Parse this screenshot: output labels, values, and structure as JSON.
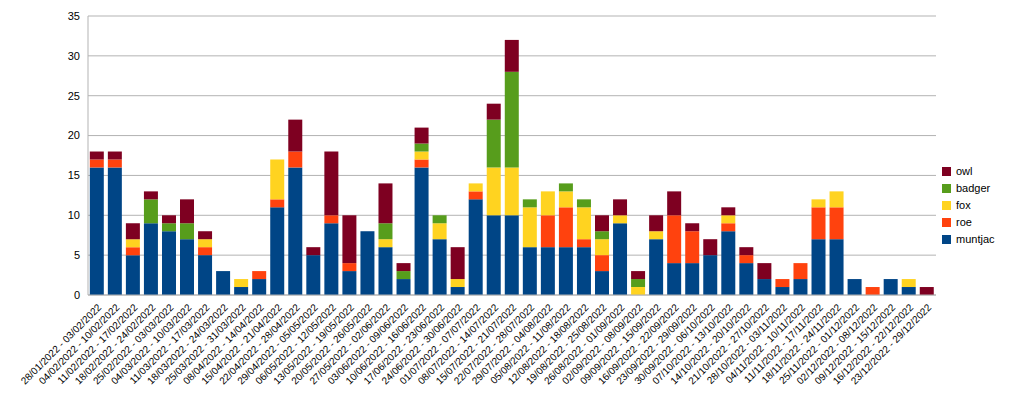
{
  "chart_data": {
    "type": "bar",
    "stacked": true,
    "grid": true,
    "legend": "right",
    "categories": [
      "28/01/2022 - 03/02/2022",
      "04/02/2022 - 10/02/2022",
      "11/02/2022 - 17/02/2022",
      "18/02/2022 - 24/02/2022",
      "25/02/2022 - 03/03/2022",
      "04/03/2022 - 10/03/2022",
      "11/03/2022 - 17/03/2022",
      "18/03/2022 - 24/03/2022",
      "25/03/2022 - 31/03/2022",
      "08/04/2022 - 14/04/2022",
      "15/04/2022 - 21/04/2022",
      "22/04/2022 - 28/04/2022",
      "29/04/2022 - 05/05/2022",
      "06/05/2022 - 12/05/2022",
      "13/05/2022 - 19/05/2022",
      "20/05/2022 - 26/05/2022",
      "27/05/2022 - 02/06/2022",
      "03/06/2022 - 09/06/2022",
      "10/06/2022 - 16/06/2022",
      "17/06/2022 - 23/06/2022",
      "24/06/2022 - 30/06/2022",
      "01/07/2022 - 07/07/2022",
      "08/07/2022 - 14/07/2022",
      "15/07/2022 - 21/07/2022",
      "22/07/2022 - 28/07/2022",
      "29/07/2022 - 04/08/2022",
      "05/08/2022 - 11/08/2022",
      "12/08/2022 - 18/08/2022",
      "19/08/2022 - 25/08/2022",
      "26/08/2022 - 01/09/2022",
      "02/09/2022 - 08/09/2022",
      "09/09/2022 - 15/09/2022",
      "16/09/2022 - 22/09/2022",
      "23/09/2022 - 29/09/2022",
      "30/09/2022 - 06/10/2022",
      "07/10/2022 - 13/10/2022",
      "14/10/2022 - 20/10/2022",
      "21/10/2022 - 27/10/2022",
      "28/10/2022 - 03/11/2022",
      "04/11/2022 - 10/11/2022",
      "11/11/2022 - 17/11/2022",
      "18/11/2022 - 24/11/2022",
      "25/11/2022 - 01/12/2022",
      "02/12/2022 - 08/12/2022",
      "09/12/2022 - 15/12/2022",
      "16/12/2022 - 22/12/2022",
      "23/12/2022 - 29/12/2022"
    ],
    "series": [
      {
        "name": "muntjac",
        "color": "#004586",
        "values": [
          16,
          16,
          5,
          9,
          8,
          7,
          5,
          3,
          1,
          2,
          11,
          16,
          5,
          9,
          3,
          8,
          6,
          2,
          16,
          7,
          1,
          12,
          10,
          10,
          6,
          6,
          6,
          6,
          3,
          9,
          0,
          7,
          4,
          4,
          5,
          8,
          4,
          2,
          1,
          2,
          7,
          7,
          2,
          0,
          2,
          1,
          0
        ]
      },
      {
        "name": "roe",
        "color": "#ff420e",
        "values": [
          1,
          1,
          1,
          0,
          0,
          0,
          1,
          0,
          0,
          1,
          1,
          2,
          0,
          1,
          1,
          0,
          0,
          0,
          1,
          0,
          0,
          1,
          0,
          0,
          0,
          4,
          5,
          1,
          2,
          0,
          0,
          0,
          6,
          4,
          0,
          1,
          1,
          0,
          1,
          2,
          4,
          4,
          0,
          1,
          0,
          0,
          0
        ]
      },
      {
        "name": "fox",
        "color": "#ffd320",
        "values": [
          0,
          0,
          1,
          0,
          0,
          0,
          1,
          0,
          1,
          0,
          5,
          0,
          0,
          0,
          0,
          0,
          1,
          0,
          1,
          2,
          1,
          1,
          6,
          6,
          5,
          3,
          2,
          4,
          2,
          1,
          1,
          1,
          0,
          0,
          0,
          1,
          0,
          0,
          0,
          0,
          1,
          2,
          0,
          0,
          0,
          1,
          0
        ]
      },
      {
        "name": "badger",
        "color": "#579d1c",
        "values": [
          0,
          0,
          0,
          3,
          1,
          2,
          0,
          0,
          0,
          0,
          0,
          0,
          0,
          0,
          0,
          0,
          2,
          1,
          1,
          1,
          0,
          0,
          6,
          12,
          1,
          0,
          1,
          1,
          1,
          0,
          1,
          0,
          0,
          0,
          0,
          0,
          0,
          0,
          0,
          0,
          0,
          0,
          0,
          0,
          0,
          0,
          0
        ]
      },
      {
        "name": "owl",
        "color": "#7e0021",
        "values": [
          1,
          1,
          2,
          1,
          1,
          3,
          1,
          0,
          0,
          0,
          0,
          4,
          1,
          8,
          6,
          0,
          5,
          1,
          2,
          0,
          4,
          0,
          2,
          4,
          0,
          0,
          0,
          0,
          2,
          2,
          1,
          2,
          3,
          1,
          2,
          1,
          1,
          2,
          0,
          0,
          0,
          0,
          0,
          0,
          0,
          0,
          1
        ]
      }
    ],
    "ylim": [
      0,
      35
    ],
    "yticks": [
      0,
      5,
      10,
      15,
      20,
      25,
      30,
      35
    ]
  }
}
